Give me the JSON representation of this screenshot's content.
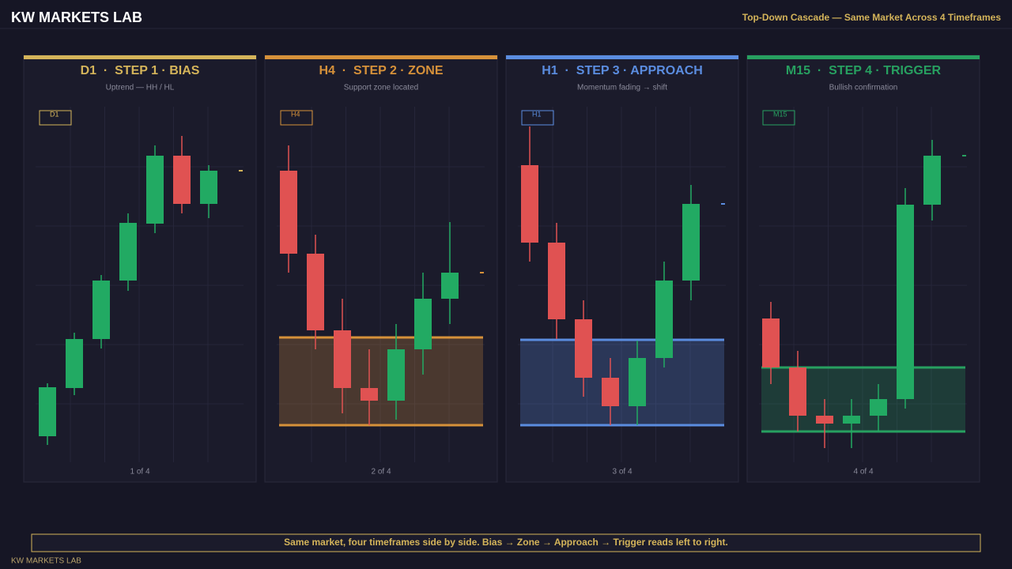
{
  "header": {
    "title": "KW MARKETS LAB",
    "subtitle": "Top-Down Cascade — Same Market Across 4 Timeframes"
  },
  "chart_data": [
    {
      "type": "candlestick",
      "title": "D1  ·  STEP 1 · BIAS",
      "subtitle": "Uptrend — HH / HL",
      "badge": "D1",
      "caption": "1 of 4",
      "color": "#d4b45a",
      "up_color": "#22aa63",
      "down_color": "#e05252",
      "ylim": [
        0,
        450
      ],
      "grid": true,
      "open": [
        33,
        94,
        156,
        230,
        302,
        388,
        327
      ],
      "high": [
        100,
        164,
        237,
        315,
        401,
        413,
        376
      ],
      "low": [
        22,
        85,
        144,
        217,
        290,
        315,
        309
      ],
      "close": [
        95,
        156,
        230,
        303,
        388,
        327,
        369
      ]
    },
    {
      "type": "candlestick",
      "title": "H4  ·  STEP 2 · ZONE",
      "subtitle": "Support zone located",
      "badge": "H4",
      "caption": "2 of 4",
      "color": "#d6913a",
      "up_color": "#22aa63",
      "down_color": "#e05252",
      "ylim": [
        0,
        450
      ],
      "grid": true,
      "open": [
        369,
        264,
        167,
        94,
        78,
        143,
        207
      ],
      "high": [
        401,
        288,
        207,
        143,
        175,
        240,
        304
      ],
      "low": [
        240,
        143,
        62,
        47,
        54,
        111,
        175
      ],
      "close": [
        264,
        167,
        94,
        78,
        143,
        207,
        240
      ],
      "zone": [
        47,
        158
      ]
    },
    {
      "type": "candlestick",
      "title": "H1  ·  STEP 3 · APPROACH",
      "subtitle": "Momentum fading → shift",
      "badge": "H1",
      "caption": "3 of 4",
      "color": "#5b8de0",
      "up_color": "#22aa63",
      "down_color": "#e05252",
      "ylim": [
        0,
        450
      ],
      "grid": true,
      "open": [
        376,
        278,
        181,
        107,
        71,
        132,
        230
      ],
      "high": [
        425,
        303,
        205,
        132,
        154,
        254,
        351
      ],
      "low": [
        254,
        156,
        83,
        47,
        47,
        120,
        205
      ],
      "close": [
        278,
        181,
        107,
        71,
        132,
        230,
        327
      ],
      "zone": [
        47,
        155
      ]
    },
    {
      "type": "candlestick",
      "title": "M15  ·  STEP 4 · TRIGGER",
      "subtitle": "Bullish confirmation",
      "badge": "M15",
      "caption": "4 of 4",
      "color": "#27a060",
      "up_color": "#22aa63",
      "down_color": "#e05252",
      "ylim": [
        0,
        450
      ],
      "grid": true,
      "open": [
        182,
        120,
        59,
        49,
        59,
        80,
        326
      ],
      "high": [
        203,
        141,
        80,
        80,
        99,
        347,
        408
      ],
      "low": [
        99,
        39,
        18,
        18,
        39,
        68,
        306
      ],
      "close": [
        120,
        59,
        49,
        59,
        80,
        326,
        388
      ],
      "zone": [
        39,
        120
      ]
    }
  ],
  "footer": {
    "note": "Same market, four timeframes side by side. Bias → Zone → Approach → Trigger reads left to right.",
    "brand": "KW MARKETS LAB"
  }
}
